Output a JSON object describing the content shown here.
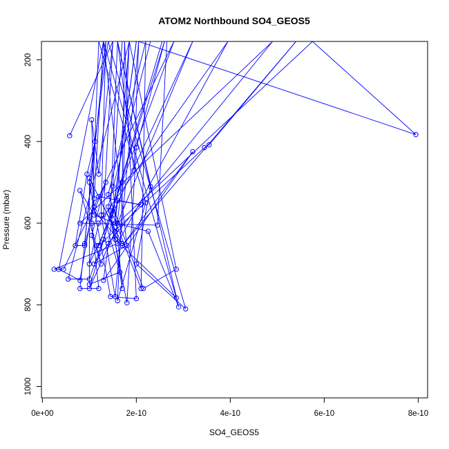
{
  "chart_data": {
    "type": "line",
    "title": "ATOM2 Northbound SO4_GEOS5",
    "xlabel": "SO4_GEOS5",
    "ylabel": "Pressure (mbar)",
    "xlim": [
      -2e-12,
      8.2e-10
    ],
    "ylim": [
      1028,
      155
    ],
    "y_reversed": true,
    "x_ticks": [
      0,
      2e-10,
      4e-10,
      6e-10,
      8e-10
    ],
    "x_tick_labels": [
      "0e+00",
      "2e-10",
      "4e-10",
      "6e-10",
      "8e-10"
    ],
    "y_ticks": [
      200,
      400,
      600,
      800,
      1000
    ],
    "y_tick_labels": [
      "200",
      "400",
      "600",
      "800",
      "1000"
    ],
    "series_color": "#0000ff",
    "series": [
      {
        "points": [
          [
            5.8e-11,
            386
          ],
          [
            1.5e-10,
            155
          ],
          [
            1.5e-10,
            155
          ],
          [
            1.2e-10,
            480
          ],
          [
            1.05e-10,
            347
          ],
          [
            1.1e-10,
            560
          ],
          [
            9e-11,
            655
          ],
          [
            7e-11,
            655
          ],
          [
            9.5e-11,
            480
          ],
          [
            1.12e-10,
            400
          ],
          [
            9e-11,
            650
          ],
          [
            1.35e-10,
            155
          ],
          [
            1.7e-10,
            155
          ],
          [
            1.5e-10,
            510
          ],
          [
            1.7e-10,
            760
          ],
          [
            1.45e-10,
            570
          ],
          [
            1.6e-10,
            155
          ],
          [
            1.95e-10,
            470
          ],
          [
            2.05e-10,
            155
          ],
          [
            2.3e-10,
            155
          ],
          [
            1.4e-10,
            560
          ],
          [
            1.8e-10,
            795
          ],
          [
            2e-10,
            415
          ],
          [
            2.6e-10,
            155
          ],
          [
            1.3e-10,
            640
          ],
          [
            1e-10,
            737
          ],
          [
            5.5e-11,
            737
          ],
          [
            1.85e-10,
            155
          ],
          [
            1.6e-10,
            790
          ],
          [
            2.2e-10,
            550
          ],
          [
            1.2e-10,
            155
          ],
          [
            1.05e-10,
            600
          ],
          [
            1.2e-10,
            760
          ],
          [
            8e-11,
            760
          ],
          [
            1.35e-10,
            155
          ],
          [
            1.25e-10,
            580
          ],
          [
            1.55e-10,
            780
          ],
          [
            2.05e-10,
            155
          ],
          [
            7.95e-10,
            383
          ],
          [
            5.75e-10,
            155
          ],
          [
            1.6e-10,
            600
          ],
          [
            3.2e-10,
            155
          ],
          [
            1e-10,
            700
          ],
          [
            1.2e-10,
            600
          ],
          [
            3.95e-10,
            155
          ],
          [
            1.6e-10,
            650
          ],
          [
            2.5e-11,
            713
          ],
          [
            4.5e-11,
            713
          ],
          [
            2.8e-10,
            155
          ],
          [
            1.2e-10,
            655
          ],
          [
            3.45e-10,
            415
          ],
          [
            3.55e-10,
            408
          ],
          [
            5.4e-10,
            155
          ],
          [
            1.7e-10,
            655
          ],
          [
            3.2e-10,
            425
          ],
          [
            1.3e-10,
            740
          ],
          [
            2e-10,
            155
          ],
          [
            1.5e-10,
            580
          ],
          [
            2.1e-10,
            760
          ],
          [
            2.2e-10,
            155
          ],
          [
            1.4e-10,
            530
          ],
          [
            2.15e-10,
            760
          ],
          [
            2.85e-10,
            713
          ],
          [
            1.85e-10,
            155
          ],
          [
            1.55e-10,
            600
          ],
          [
            2.25e-10,
            620
          ],
          [
            2.9e-10,
            805
          ],
          [
            1.6e-10,
            155
          ],
          [
            2.3e-10,
            510
          ],
          [
            2e-10,
            700
          ],
          [
            3.05e-10,
            810
          ],
          [
            1.4e-10,
            155
          ],
          [
            1e-10,
            500
          ],
          [
            1.45e-10,
            780
          ],
          [
            2e-10,
            785
          ],
          [
            1.75e-10,
            155
          ],
          [
            1.7e-10,
            500
          ],
          [
            1.55e-10,
            640
          ],
          [
            2.85e-10,
            783
          ],
          [
            1.3e-10,
            155
          ],
          [
            1.1e-10,
            540
          ],
          [
            8e-11,
            740
          ],
          [
            3.5e-11,
            713
          ],
          [
            1.3e-10,
            155
          ],
          [
            1.8e-10,
            655
          ],
          [
            1.1e-10,
            700
          ],
          [
            1.4e-10,
            650
          ],
          [
            4.9e-10,
            155
          ],
          [
            8e-11,
            600
          ],
          [
            2.45e-10,
            605
          ],
          [
            2.65e-10,
            155
          ],
          [
            1.5e-10,
            155
          ],
          [
            1.3e-10,
            580
          ],
          [
            1.65e-10,
            720
          ],
          [
            1e-10,
            750
          ],
          [
            1e-10,
            490
          ],
          [
            1.7e-10,
            650
          ],
          [
            1.1e-10,
            570
          ],
          [
            1.35e-10,
            500
          ],
          [
            1.05e-10,
            630
          ],
          [
            1.25e-10,
            700
          ],
          [
            1.15e-10,
            655
          ],
          [
            8e-11,
            520
          ],
          [
            1.1e-10,
            580
          ],
          [
            1.55e-10,
            600
          ],
          [
            1.6e-10,
            545
          ],
          [
            2.1e-10,
            555
          ],
          [
            1.2e-10,
            535
          ],
          [
            1.55e-10,
            620
          ],
          [
            1e-10,
            760
          ],
          [
            2.55e-10,
            155
          ]
        ]
      }
    ]
  }
}
